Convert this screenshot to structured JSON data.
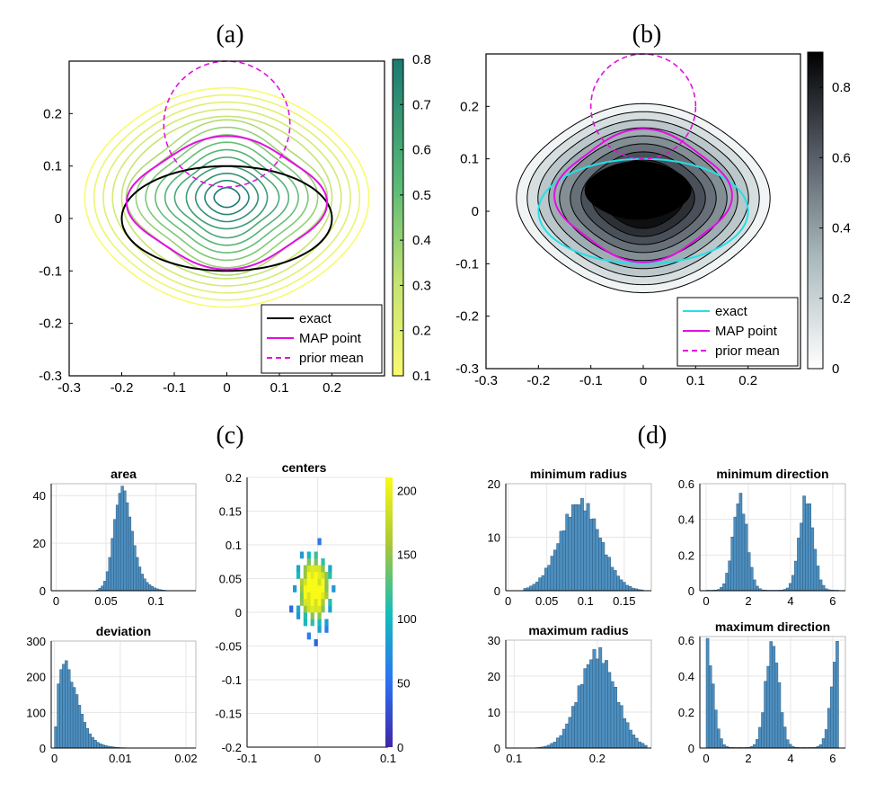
{
  "panel_labels": [
    "(a)",
    "(b)",
    "(c)",
    "(d)"
  ],
  "chart_data": [
    {
      "id": "a",
      "type": "contour",
      "title": "(a)",
      "xlim": [
        -0.3,
        0.3
      ],
      "ylim": [
        -0.3,
        0.3
      ],
      "xticks": [
        "-0.3",
        "-0.2",
        "-0.1",
        "0",
        "0.1",
        "0.2"
      ],
      "yticks": [
        "-0.3",
        "-0.2",
        "-0.1",
        "0",
        "0.1",
        "0.2"
      ],
      "colorbar": {
        "range": [
          0.1,
          0.8
        ],
        "ticks": [
          "0.1",
          "0.2",
          "0.3",
          "0.4",
          "0.5",
          "0.6",
          "0.7",
          "0.8"
        ],
        "colormap": "viridis-light"
      },
      "contour_levels": [
        0.1,
        0.15,
        0.2,
        0.25,
        0.3,
        0.35,
        0.4,
        0.45,
        0.5,
        0.55,
        0.6,
        0.65,
        0.7,
        0.75,
        0.8
      ],
      "curves": {
        "exact": {
          "cx": 0.0,
          "cy": 0.0,
          "rx": 0.2,
          "ry": 0.1
        },
        "map_point": {
          "cx": 0.0,
          "cy": 0.03,
          "rx": 0.18,
          "ry": 0.12
        },
        "prior_mean": {
          "cx": 0.0,
          "cy": 0.18,
          "rx": 0.12,
          "ry": 0.12
        }
      },
      "legend": {
        "position": "bottom-right",
        "entries": [
          "exact",
          "MAP point",
          "prior mean"
        ]
      }
    },
    {
      "id": "b",
      "type": "contour",
      "title": "(b)",
      "xlim": [
        -0.3,
        0.3
      ],
      "ylim": [
        -0.3,
        0.3
      ],
      "xticks": [
        "-0.3",
        "-0.2",
        "-0.1",
        "0",
        "0.1",
        "0.2"
      ],
      "yticks": [
        "-0.3",
        "-0.2",
        "-0.1",
        "0",
        "0.1",
        "0.2"
      ],
      "colorbar": {
        "range": [
          0,
          0.9
        ],
        "ticks": [
          "0",
          "0.2",
          "0.4",
          "0.6",
          "0.8"
        ],
        "colormap": "bone-reversed"
      },
      "contour_levels": [
        0.05,
        0.15,
        0.25,
        0.35,
        0.45,
        0.55,
        0.65,
        0.75,
        0.85
      ],
      "curves": {
        "exact": {
          "cx": 0.0,
          "cy": 0.0,
          "rx": 0.2,
          "ry": 0.1
        },
        "map_point": {
          "cx": 0.0,
          "cy": 0.03,
          "rx": 0.16,
          "ry": 0.12
        },
        "prior_mean": {
          "cx": 0.0,
          "cy": 0.2,
          "rx": 0.1,
          "ry": 0.1
        }
      },
      "legend": {
        "position": "bottom-right",
        "entries": [
          "exact",
          "MAP point",
          "prior mean"
        ]
      }
    },
    {
      "id": "c-area",
      "type": "bar",
      "title": "area",
      "xlim": [
        -0.005,
        0.14
      ],
      "ylim": [
        0,
        45
      ],
      "xticks": [
        "0",
        "0.05",
        "0.1"
      ],
      "yticks": [
        "0",
        "20",
        "40"
      ],
      "bins": {
        "start": 0.04,
        "width": 0.0025,
        "values": [
          0.3,
          1,
          2,
          4,
          8,
          14,
          22,
          30,
          36,
          41,
          44,
          42,
          37,
          31,
          25,
          19,
          14,
          10,
          7,
          5,
          3.5,
          2.5,
          1.8,
          1.2,
          0.8,
          0.5,
          0.3,
          0.2,
          0.1,
          0.05
        ]
      }
    },
    {
      "id": "c-deviation",
      "type": "bar",
      "title": "deviation",
      "xlim": [
        -0.0005,
        0.0215
      ],
      "ylim": [
        0,
        300
      ],
      "xticks": [
        "0",
        "0.01",
        "0.02"
      ],
      "yticks": [
        "0",
        "100",
        "200",
        "300"
      ],
      "bins": {
        "start": 0.0,
        "width": 0.0004,
        "values": [
          60,
          180,
          220,
          235,
          245,
          220,
          185,
          170,
          150,
          120,
          95,
          72,
          55,
          40,
          30,
          22,
          16,
          12,
          9,
          7,
          5,
          4,
          3,
          2,
          1.5,
          1,
          1,
          0.6,
          0.5,
          0.4,
          0.3,
          0.2,
          0.2,
          0.1,
          0.1,
          0.1,
          0.1
        ]
      }
    },
    {
      "id": "c-centers",
      "type": "heatmap",
      "title": "centers",
      "xlim": [
        -0.1,
        0.1
      ],
      "ylim": [
        -0.2,
        0.2
      ],
      "xticks": [
        "-0.1",
        "0",
        "0.1"
      ],
      "yticks": [
        "-0.2",
        "-0.15",
        "-0.1",
        "-0.05",
        "0",
        "0.05",
        "0.1",
        "0.15",
        "0.2"
      ],
      "distribution": {
        "mean_x": -0.005,
        "mean_y": 0.035,
        "std_x": 0.02,
        "std_y": 0.045,
        "peak": 200
      },
      "colorbar": {
        "range": [
          0,
          210
        ],
        "ticks": [
          "0",
          "50",
          "100",
          "150",
          "200"
        ],
        "colormap": "parula"
      }
    },
    {
      "id": "d-min-radius",
      "type": "bar",
      "title": "minimum radius",
      "xlim": [
        -0.003,
        0.185
      ],
      "ylim": [
        0,
        20
      ],
      "xticks": [
        "0",
        "0.05",
        "0.1",
        "0.15"
      ],
      "yticks": [
        "0",
        "10",
        "20"
      ],
      "distribution": {
        "mean": 0.093,
        "std": 0.026,
        "peak": 16.5,
        "from": 0.02,
        "to": 0.175,
        "bins": 40
      }
    },
    {
      "id": "d-min-direction",
      "type": "bar",
      "title": "minimum direction",
      "xlim": [
        -0.3,
        6.6
      ],
      "ylim": [
        0,
        0.6
      ],
      "xticks": [
        "0",
        "2",
        "4",
        "6"
      ],
      "yticks": [
        "0",
        "0.2",
        "0.4",
        "0.6"
      ],
      "distribution": {
        "modes": [
          1.6,
          4.75
        ],
        "std": 0.33,
        "peak": 0.52,
        "floor": 0.005,
        "from": 0,
        "to": 6.28,
        "bins": 48
      }
    },
    {
      "id": "d-max-radius",
      "type": "bar",
      "title": "maximum radius",
      "xlim": [
        0.09,
        0.265
      ],
      "ylim": [
        0,
        30
      ],
      "xticks": [
        "0.1",
        "0.2"
      ],
      "yticks": [
        "0",
        "10",
        "20",
        "30"
      ],
      "distribution": {
        "mean": 0.2,
        "std": 0.022,
        "peak": 26.5,
        "from": 0.1,
        "to": 0.26,
        "bins": 44
      }
    },
    {
      "id": "d-max-direction",
      "type": "bar",
      "title": "maximum direction",
      "xlim": [
        -0.3,
        6.6
      ],
      "ylim": [
        0,
        0.62
      ],
      "xticks": [
        "0",
        "2",
        "4",
        "6"
      ],
      "yticks": [
        "0",
        "0.2",
        "0.4",
        "0.6"
      ],
      "distribution": {
        "modes": [
          0,
          3.14,
          6.28
        ],
        "std": 0.32,
        "peak": 0.58,
        "floor": 0.005,
        "from": 0,
        "to": 6.28,
        "bins": 48
      }
    }
  ],
  "colors": {
    "exact_a": "#000000",
    "exact_b": "#22e0e8",
    "map": "#e010e0",
    "prior": "#e010e0",
    "bar_fill": "#4e8fbf",
    "bar_edge": "#2a5d86",
    "axis": "#000000",
    "grid": "#e6e6e6"
  }
}
